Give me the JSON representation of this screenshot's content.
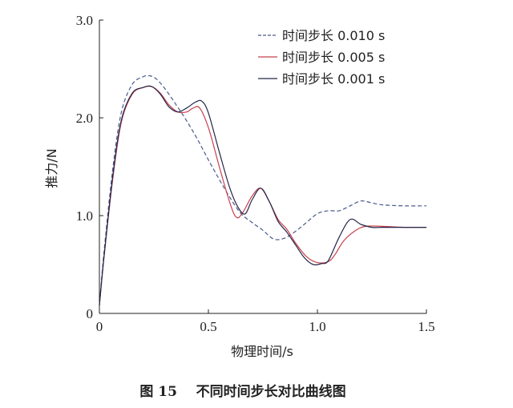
{
  "chart_data": {
    "type": "line",
    "title": "",
    "caption": "图 15    不同时间步长对比曲线图",
    "xlabel": "物理时间/s",
    "ylabel": "推力/N",
    "xlim": [
      0,
      1.5
    ],
    "ylim": [
      0,
      3.0
    ],
    "x_ticks": [
      "0",
      "0.5",
      "1.0",
      "1.5"
    ],
    "y_ticks": [
      "0",
      "1.0",
      "2.0",
      "3.0"
    ],
    "grid": false,
    "legend_position": "top-right",
    "series": [
      {
        "name": "时间步长 0.010 s",
        "color": "#4a5a8c",
        "dash": "dashed",
        "x": [
          0.0,
          0.02,
          0.06,
          0.1,
          0.15,
          0.2,
          0.23,
          0.26,
          0.3,
          0.35,
          0.4,
          0.45,
          0.5,
          0.55,
          0.6,
          0.65,
          0.7,
          0.75,
          0.8,
          0.85,
          0.9,
          0.95,
          1.0,
          1.05,
          1.1,
          1.15,
          1.2,
          1.25,
          1.3,
          1.4,
          1.5
        ],
        "y": [
          0.08,
          0.6,
          1.45,
          2.05,
          2.34,
          2.42,
          2.43,
          2.4,
          2.3,
          2.14,
          1.97,
          1.78,
          1.57,
          1.37,
          1.18,
          1.02,
          0.93,
          0.85,
          0.76,
          0.77,
          0.84,
          0.93,
          1.02,
          1.05,
          1.05,
          1.1,
          1.15,
          1.13,
          1.11,
          1.1,
          1.1
        ]
      },
      {
        "name": "时间步长 0.005 s",
        "color": "#c8404c",
        "dash": "solid",
        "x": [
          0.0,
          0.02,
          0.06,
          0.1,
          0.15,
          0.2,
          0.24,
          0.28,
          0.32,
          0.36,
          0.4,
          0.43,
          0.46,
          0.5,
          0.55,
          0.6,
          0.63,
          0.66,
          0.7,
          0.74,
          0.78,
          0.82,
          0.86,
          0.9,
          0.95,
          1.0,
          1.05,
          1.08,
          1.12,
          1.17,
          1.22,
          1.3,
          1.4,
          1.5
        ],
        "y": [
          0.08,
          0.55,
          1.35,
          1.95,
          2.24,
          2.31,
          2.32,
          2.25,
          2.13,
          2.06,
          2.06,
          2.1,
          2.1,
          1.9,
          1.5,
          1.12,
          0.98,
          1.04,
          1.2,
          1.28,
          1.14,
          0.96,
          0.86,
          0.72,
          0.58,
          0.52,
          0.53,
          0.6,
          0.74,
          0.84,
          0.89,
          0.89,
          0.88,
          0.88
        ]
      },
      {
        "name": "时间步长 0.001 s",
        "color": "#23264a",
        "dash": "solid",
        "x": [
          0.0,
          0.02,
          0.06,
          0.1,
          0.15,
          0.2,
          0.24,
          0.28,
          0.32,
          0.36,
          0.4,
          0.44,
          0.47,
          0.5,
          0.55,
          0.6,
          0.64,
          0.67,
          0.7,
          0.74,
          0.78,
          0.82,
          0.86,
          0.9,
          0.94,
          0.98,
          1.02,
          1.05,
          1.1,
          1.15,
          1.2,
          1.25,
          1.3,
          1.4,
          1.5
        ],
        "y": [
          0.08,
          0.55,
          1.38,
          1.97,
          2.25,
          2.31,
          2.32,
          2.24,
          2.11,
          2.06,
          2.1,
          2.16,
          2.17,
          2.05,
          1.65,
          1.27,
          1.07,
          1.02,
          1.16,
          1.28,
          1.14,
          0.94,
          0.83,
          0.7,
          0.57,
          0.5,
          0.51,
          0.54,
          0.78,
          0.96,
          0.91,
          0.88,
          0.88,
          0.88,
          0.88
        ]
      }
    ]
  }
}
